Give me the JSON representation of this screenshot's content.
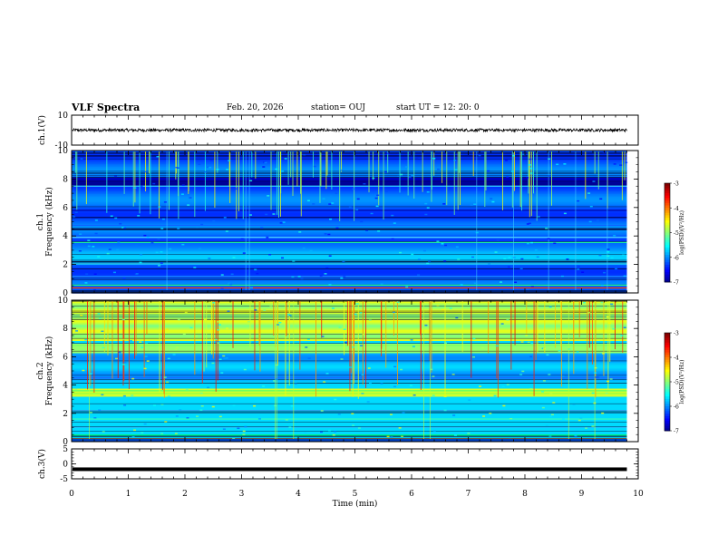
{
  "header": {
    "title": "VLF Spectra",
    "date": "Feb. 20, 2026",
    "station": "station= OUJ",
    "start_ut": "start  UT  =   12: 20: 0"
  },
  "chart_data": [
    {
      "type": "line",
      "name": "ch1-waveform",
      "ylabel": "ch.1(V)",
      "ylim": [
        -10,
        10
      ],
      "yticks": [
        "10",
        "-10"
      ],
      "x": [
        0,
        9.8
      ],
      "series": [
        {
          "name": "ch.1",
          "mean": 0,
          "amplitude": 1
        }
      ]
    },
    {
      "type": "heatmap",
      "name": "ch1-spectrogram",
      "ylabel_top": "ch.1",
      "ylabel": "Frequency (kHz)",
      "ylim": [
        0,
        10
      ],
      "yticks": [
        "0",
        "2",
        "4",
        "6",
        "8",
        "10"
      ],
      "xlim": [
        0,
        10
      ],
      "data_xmax": 9.8,
      "colorbar": {
        "label": "log(PSD)(V²/Hz)",
        "ticks": [
          "-3",
          "-4",
          "-5",
          "-6",
          "-7"
        ],
        "range": [
          -7,
          -3
        ]
      }
    },
    {
      "type": "heatmap",
      "name": "ch2-spectrogram",
      "ylabel_top": "ch.2",
      "ylabel": "Frequency (kHz)",
      "ylim": [
        0,
        10
      ],
      "yticks": [
        "0",
        "2",
        "4",
        "6",
        "8",
        "10"
      ],
      "xlim": [
        0,
        10
      ],
      "data_xmax": 9.8,
      "colorbar": {
        "label": "log(PSD)(V²/Hz)",
        "ticks": [
          "-3",
          "-4",
          "-5",
          "-6",
          "-7"
        ],
        "range": [
          -7,
          -3
        ]
      }
    },
    {
      "type": "line",
      "name": "ch3-waveform",
      "ylabel": "ch.3(V)",
      "ylim": [
        -5,
        5
      ],
      "yticks": [
        "5",
        "0",
        "-5"
      ],
      "x": [
        0,
        9.8
      ],
      "series": [
        {
          "name": "ch.3",
          "mean": -1.8,
          "amplitude": 0.3
        }
      ]
    }
  ],
  "xaxis": {
    "label": "Time (min)",
    "ticks": [
      "0",
      "1",
      "2",
      "3",
      "4",
      "5",
      "6",
      "7",
      "8",
      "9",
      "10"
    ],
    "range": [
      0,
      10
    ]
  },
  "colors": {
    "background": "#ffffff",
    "axis": "#000000"
  }
}
